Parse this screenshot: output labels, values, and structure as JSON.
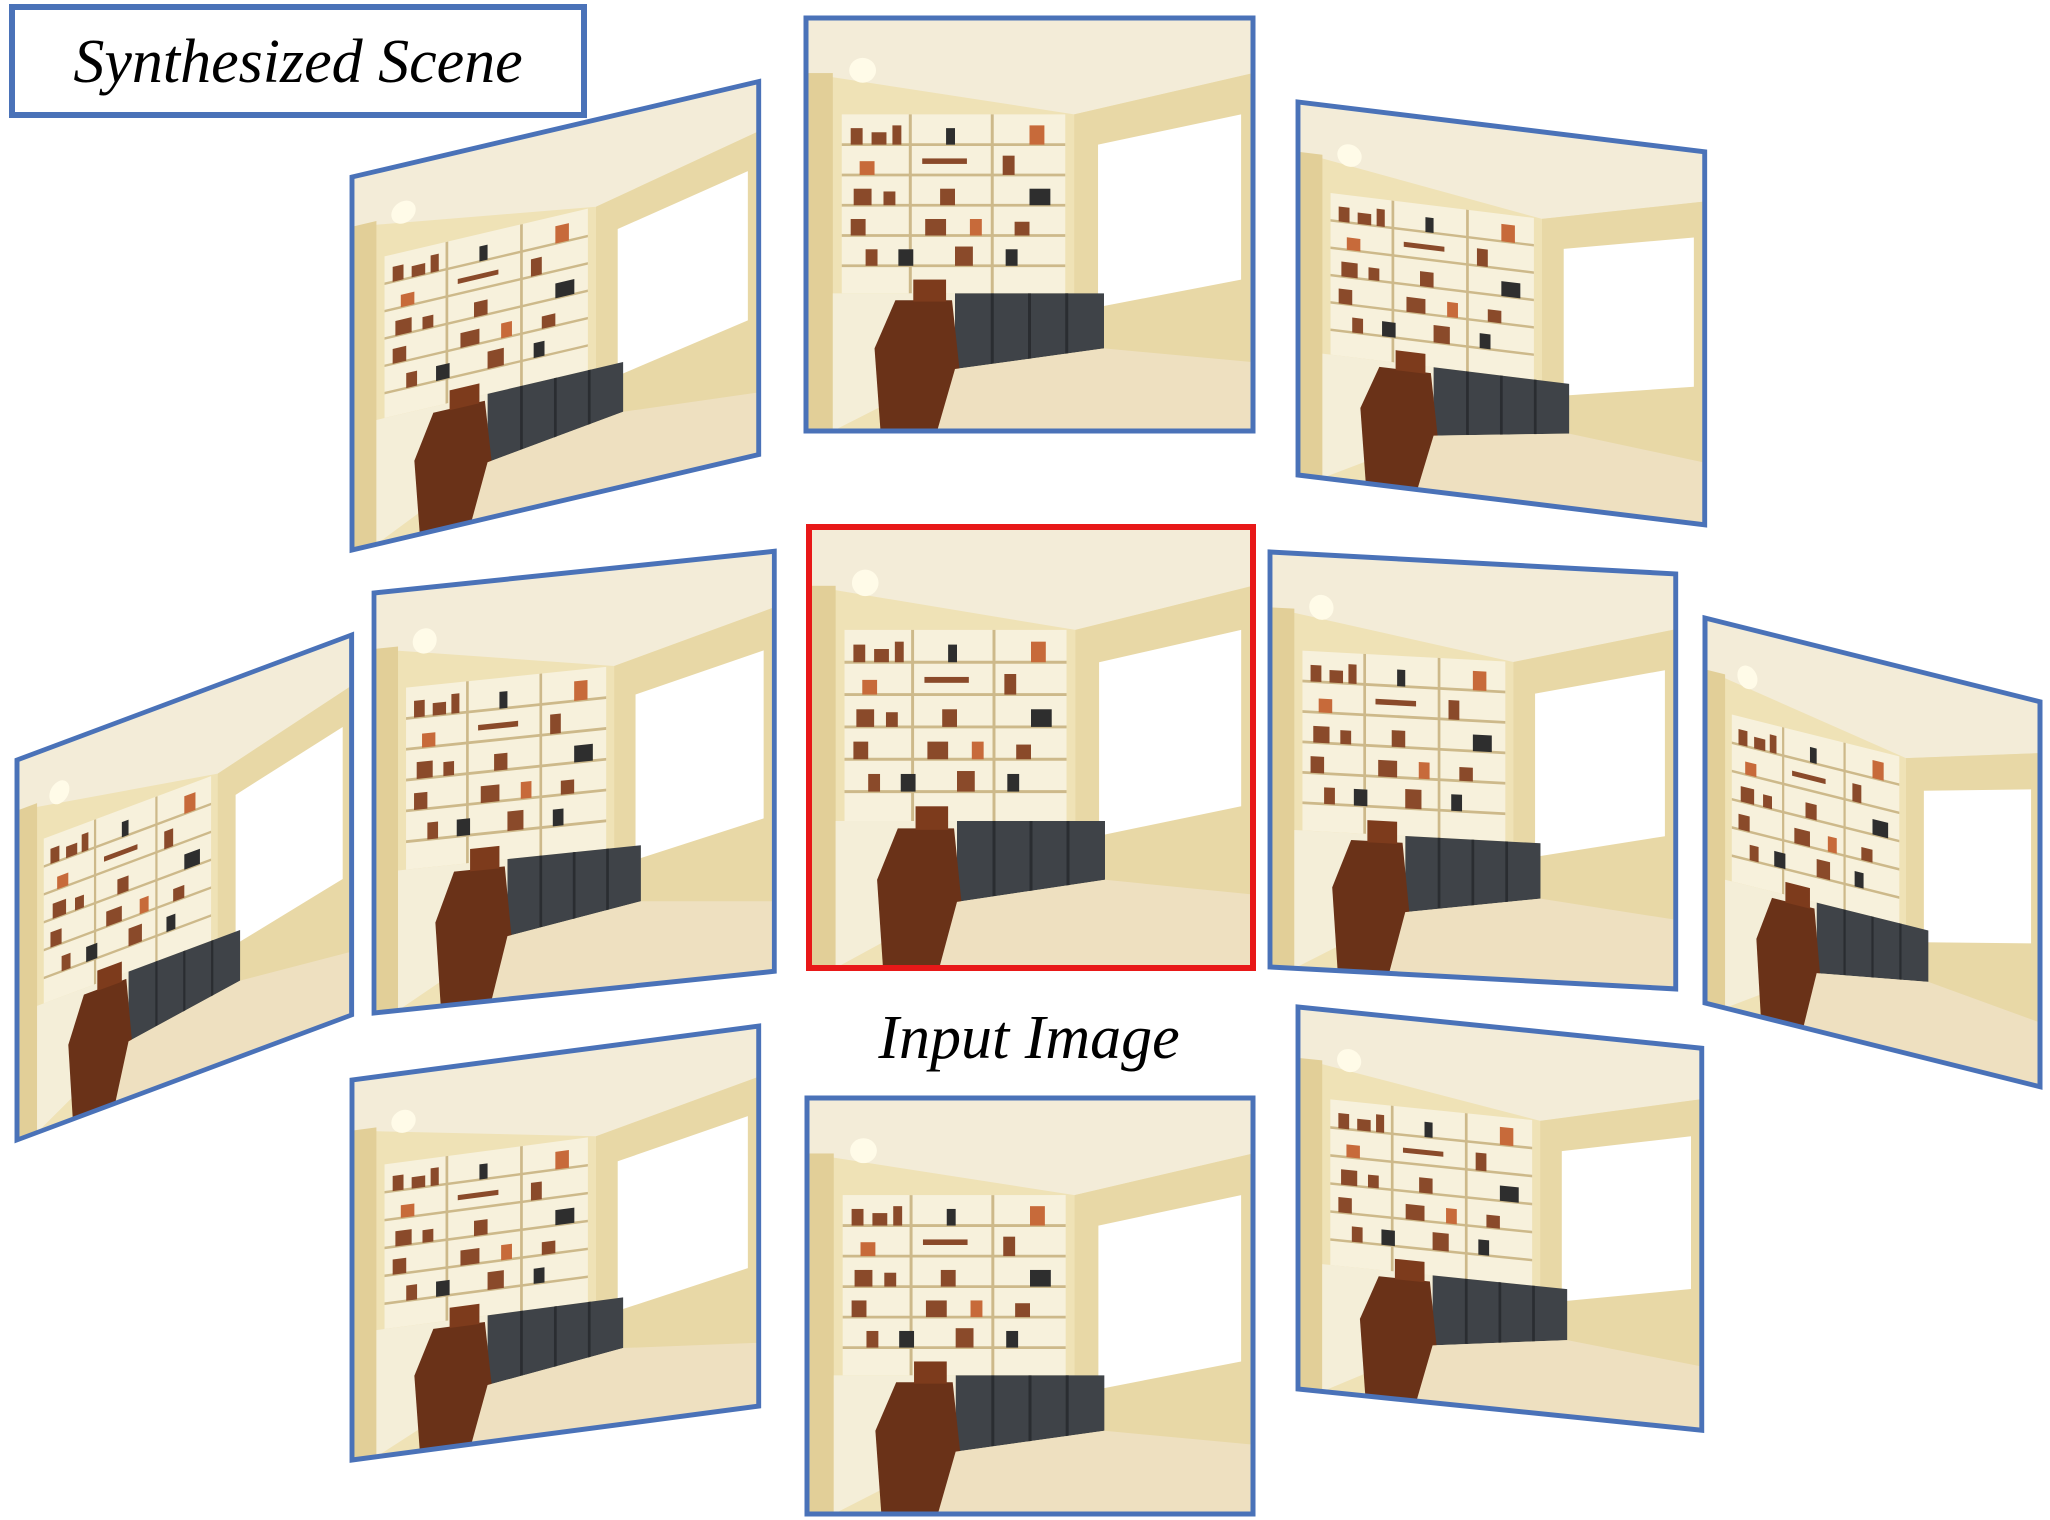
{
  "title": "Synthesized Scene",
  "input_caption": "Input Image",
  "colors": {
    "frame_blue": "#4a72b8",
    "input_red": "#e81818",
    "wall": "#efe2b6",
    "wall_shade": "#e2cf98",
    "ceiling": "#f3ecd8",
    "window": "#ffffff",
    "shelf": "#f7f1dc",
    "cabinet": "#3f4348",
    "floor": "#eee0c0",
    "chair": "#6a3218",
    "desk": "#f4eed8"
  },
  "views": [
    {
      "id": "view-top-left",
      "role": "synthesized"
    },
    {
      "id": "view-top-center",
      "role": "synthesized"
    },
    {
      "id": "view-top-right",
      "role": "synthesized"
    },
    {
      "id": "view-mid-far-left",
      "role": "synthesized"
    },
    {
      "id": "view-mid-left",
      "role": "synthesized"
    },
    {
      "id": "view-input",
      "role": "input"
    },
    {
      "id": "view-mid-right",
      "role": "synthesized"
    },
    {
      "id": "view-mid-far-right",
      "role": "synthesized"
    },
    {
      "id": "view-bottom-left",
      "role": "synthesized"
    },
    {
      "id": "view-bottom-center",
      "role": "synthesized"
    },
    {
      "id": "view-bottom-right",
      "role": "synthesized"
    }
  ]
}
